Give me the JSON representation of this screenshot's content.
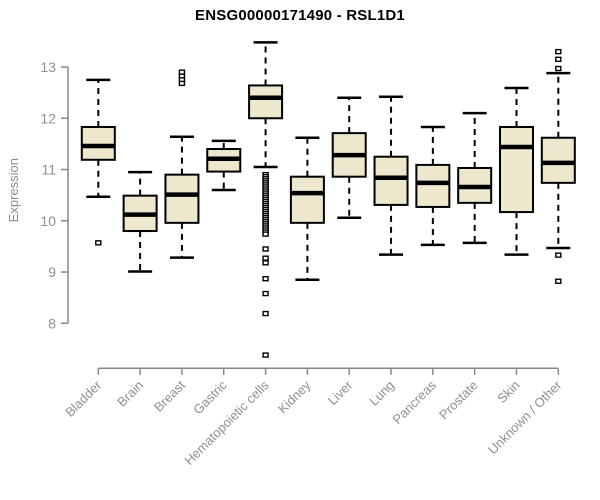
{
  "chart_data": {
    "type": "boxplot",
    "title": "ENSG00000171490 - RSL1D1",
    "ylabel": "Expression",
    "xlabel": "",
    "ylim": [
      8,
      13
    ],
    "yticks": [
      8,
      9,
      10,
      11,
      12,
      13
    ],
    "grid": false,
    "legend": "none",
    "colors": {
      "box_fill": "#EDE7CE",
      "box_stroke": "#000000",
      "axis": "#878787",
      "tick_label": "#909090",
      "title": "#000000"
    },
    "categories": [
      "Bladder",
      "Brain",
      "Breast",
      "Gastric",
      "Hematopoietic cells",
      "Kidney",
      "Liver",
      "Lung",
      "Pancreas",
      "Prostate",
      "Skin",
      "Unknown / Other"
    ],
    "series": [
      {
        "category": "Bladder",
        "whisker_low": 10.47,
        "q1": 11.19,
        "median": 11.46,
        "q3": 11.83,
        "whisker_high": 12.75,
        "outliers": [
          9.57
        ]
      },
      {
        "category": "Brain",
        "whisker_low": 9.01,
        "q1": 9.8,
        "median": 10.12,
        "q3": 10.49,
        "whisker_high": 10.95,
        "outliers": []
      },
      {
        "category": "Breast",
        "whisker_low": 9.28,
        "q1": 9.96,
        "median": 10.51,
        "q3": 10.9,
        "whisker_high": 11.64,
        "outliers": [
          12.9,
          12.82,
          12.75,
          12.68
        ]
      },
      {
        "category": "Gastric",
        "whisker_low": 10.6,
        "q1": 10.96,
        "median": 11.21,
        "q3": 11.4,
        "whisker_high": 11.56,
        "outliers": []
      },
      {
        "category": "Hematopoietic cells",
        "whisker_low": 11.05,
        "q1": 12.0,
        "median": 12.4,
        "q3": 12.64,
        "whisker_high": 13.48,
        "outliers": [
          10.9,
          10.86,
          10.82,
          10.78,
          10.74,
          10.7,
          10.66,
          10.62,
          10.58,
          10.54,
          10.5,
          10.46,
          10.42,
          10.38,
          10.34,
          10.3,
          10.26,
          10.22,
          10.18,
          10.14,
          10.1,
          10.06,
          10.02,
          9.98,
          9.94,
          9.9,
          9.86,
          9.82,
          9.78,
          9.74,
          9.45,
          9.27,
          9.18,
          8.87,
          8.58,
          8.19,
          7.38
        ]
      },
      {
        "category": "Kidney",
        "whisker_low": 8.85,
        "q1": 9.96,
        "median": 10.54,
        "q3": 10.86,
        "whisker_high": 11.62,
        "outliers": []
      },
      {
        "category": "Liver",
        "whisker_low": 10.06,
        "q1": 10.86,
        "median": 11.28,
        "q3": 11.71,
        "whisker_high": 12.4,
        "outliers": []
      },
      {
        "category": "Lung",
        "whisker_low": 9.34,
        "q1": 10.31,
        "median": 10.84,
        "q3": 11.25,
        "whisker_high": 12.42,
        "outliers": []
      },
      {
        "category": "Pancreas",
        "whisker_low": 9.53,
        "q1": 10.27,
        "median": 10.74,
        "q3": 11.09,
        "whisker_high": 11.83,
        "outliers": []
      },
      {
        "category": "Prostate",
        "whisker_low": 9.57,
        "q1": 10.35,
        "median": 10.66,
        "q3": 11.03,
        "whisker_high": 12.1,
        "outliers": []
      },
      {
        "category": "Skin",
        "whisker_low": 9.34,
        "q1": 10.17,
        "median": 11.44,
        "q3": 11.83,
        "whisker_high": 12.59,
        "outliers": []
      },
      {
        "category": "Unknown / Other",
        "whisker_low": 9.47,
        "q1": 10.74,
        "median": 11.13,
        "q3": 11.62,
        "whisker_high": 12.88,
        "outliers": [
          13.3,
          13.15,
          12.97,
          9.33,
          8.82
        ]
      }
    ]
  }
}
